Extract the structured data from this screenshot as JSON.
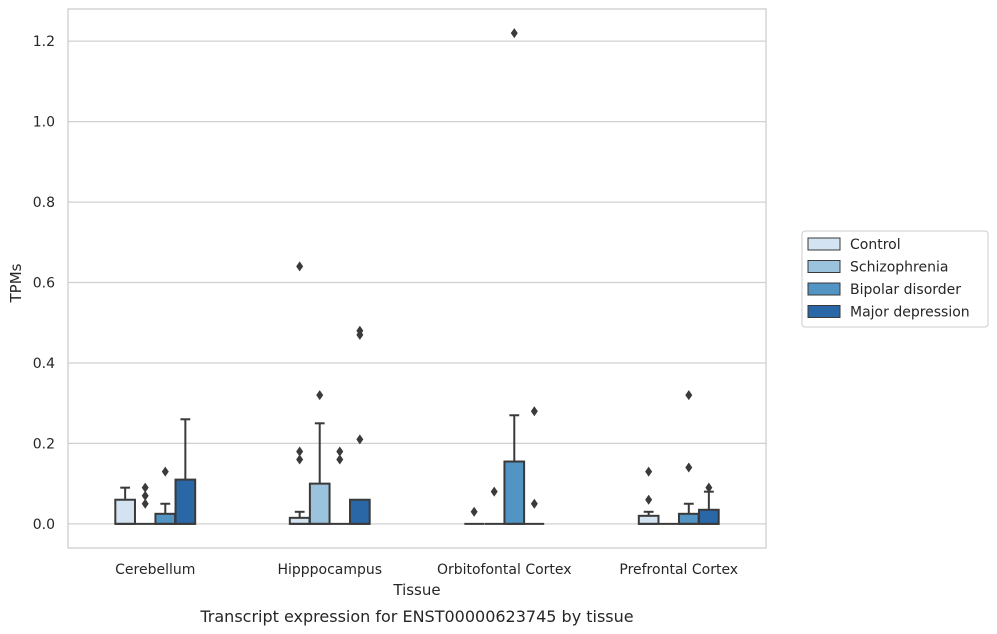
{
  "caption": "Transcript expression for ENST00000623745 by tissue",
  "chart_data": {
    "type": "box",
    "xlabel": "Tissue",
    "ylabel": "TPMs",
    "ylim": [
      -0.06,
      1.28
    ],
    "yticks": [
      0.0,
      0.2,
      0.4,
      0.6,
      0.8,
      1.0,
      1.2
    ],
    "ytick_labels": [
      "0.0",
      "0.2",
      "0.4",
      "0.6",
      "0.8",
      "1.0",
      "1.2"
    ],
    "grid": "horizontal",
    "legend_position": "right",
    "categories": [
      "Cerebellum",
      "Hipppocampus",
      "Orbitofontal Cortex",
      "Prefrontal Cortex"
    ],
    "series": [
      {
        "name": "Control",
        "color": "#d4e3f2",
        "boxes": [
          {
            "q1": 0.0,
            "median": 0.0,
            "q3": 0.06,
            "whisker_low": 0.0,
            "whisker_high": 0.09,
            "outliers": []
          },
          {
            "q1": 0.0,
            "median": 0.0,
            "q3": 0.015,
            "whisker_low": 0.0,
            "whisker_high": 0.03,
            "outliers": [
              0.16,
              0.18,
              0.64
            ]
          },
          {
            "q1": 0.0,
            "median": 0.0,
            "q3": 0.0,
            "whisker_low": 0.0,
            "whisker_high": 0.0,
            "outliers": [
              0.03
            ]
          },
          {
            "q1": 0.0,
            "median": 0.0,
            "q3": 0.02,
            "whisker_low": 0.0,
            "whisker_high": 0.03,
            "outliers": [
              0.06,
              0.13
            ]
          }
        ]
      },
      {
        "name": "Schizophrenia",
        "color": "#9cc3dd",
        "boxes": [
          {
            "q1": 0.0,
            "median": 0.0,
            "q3": 0.0,
            "whisker_low": 0.0,
            "whisker_high": 0.0,
            "outliers": [
              0.05,
              0.07,
              0.09
            ]
          },
          {
            "q1": 0.0,
            "median": 0.0,
            "q3": 0.1,
            "whisker_low": 0.0,
            "whisker_high": 0.25,
            "outliers": [
              0.32
            ]
          },
          {
            "q1": 0.0,
            "median": 0.0,
            "q3": 0.0,
            "whisker_low": 0.0,
            "whisker_high": 0.0,
            "outliers": [
              0.08
            ]
          },
          {
            "q1": 0.0,
            "median": 0.0,
            "q3": 0.0,
            "whisker_low": 0.0,
            "whisker_high": 0.0,
            "outliers": []
          }
        ]
      },
      {
        "name": "Bipolar disorder",
        "color": "#5294c3",
        "boxes": [
          {
            "q1": 0.0,
            "median": 0.0,
            "q3": 0.025,
            "whisker_low": 0.0,
            "whisker_high": 0.05,
            "outliers": [
              0.13
            ]
          },
          {
            "q1": 0.0,
            "median": 0.0,
            "q3": 0.0,
            "whisker_low": 0.0,
            "whisker_high": 0.0,
            "outliers": [
              0.16,
              0.18
            ]
          },
          {
            "q1": 0.0,
            "median": 0.0,
            "q3": 0.155,
            "whisker_low": 0.0,
            "whisker_high": 0.27,
            "outliers": [
              1.22
            ]
          },
          {
            "q1": 0.0,
            "median": 0.0,
            "q3": 0.025,
            "whisker_low": 0.0,
            "whisker_high": 0.05,
            "outliers": [
              0.14,
              0.32
            ]
          }
        ]
      },
      {
        "name": "Major depression",
        "color": "#2a67a6",
        "boxes": [
          {
            "q1": 0.0,
            "median": 0.0,
            "q3": 0.11,
            "whisker_low": 0.0,
            "whisker_high": 0.26,
            "outliers": []
          },
          {
            "q1": 0.0,
            "median": 0.0,
            "q3": 0.06,
            "whisker_low": 0.0,
            "whisker_high": 0.06,
            "outliers": [
              0.21,
              0.47,
              0.48
            ]
          },
          {
            "q1": 0.0,
            "median": 0.0,
            "q3": 0.0,
            "whisker_low": 0.0,
            "whisker_high": 0.0,
            "outliers": [
              0.05,
              0.28
            ]
          },
          {
            "q1": 0.0,
            "median": 0.0,
            "q3": 0.035,
            "whisker_low": 0.0,
            "whisker_high": 0.08,
            "outliers": [
              0.09
            ]
          }
        ]
      }
    ]
  }
}
